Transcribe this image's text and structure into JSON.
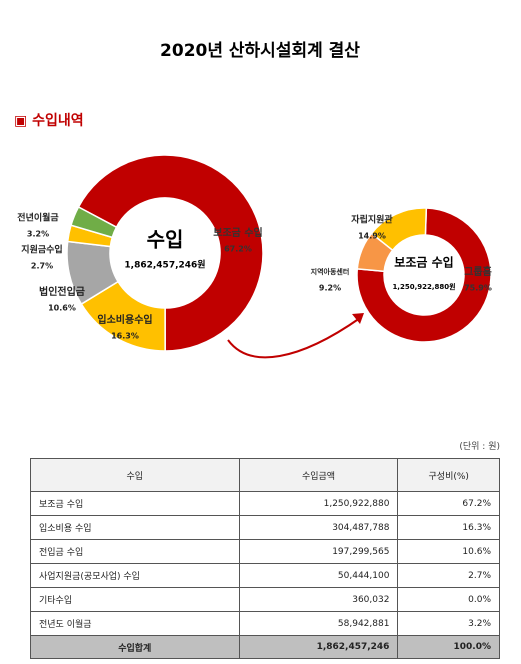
{
  "title": "2020년 산하시설회계 결산",
  "section": "▣ 수입내역",
  "chart_data": [
    {
      "type": "donut",
      "center_label": "수입",
      "center_value": "1,862,457,246원",
      "categories": [
        "보조금 수입",
        "입소비용수입",
        "법인전입금",
        "지원금수입",
        "전년이월금"
      ],
      "values": [
        67.2,
        16.3,
        10.6,
        2.7,
        3.2
      ],
      "value_labels": [
        "67.2%",
        "16.3%",
        "10.6%",
        "2.7%",
        "3.2%"
      ],
      "colors": [
        "#c00000",
        "#ffc000",
        "#a6a6a6",
        "#ffc000",
        "#70ad47"
      ]
    },
    {
      "type": "donut",
      "center_label": "보조금 수입",
      "center_value": "1,250,922,880원",
      "categories": [
        "그룹홈",
        "지역아동센터",
        "자립지원관"
      ],
      "values": [
        75.9,
        9.2,
        14.9
      ],
      "value_labels": [
        "75.9%",
        "9.2%",
        "14.9%"
      ],
      "colors": [
        "#c00000",
        "#f79646",
        "#ffc000"
      ]
    }
  ],
  "unit_note": "(단위 : 원)",
  "table": {
    "header": [
      "수입",
      "수입금액",
      "구성비(%)"
    ],
    "rows": [
      [
        "보조금 수입",
        "1,250,922,880",
        "67.2%"
      ],
      [
        "입소비용 수입",
        "304,487,788",
        "16.3%"
      ],
      [
        "전입금 수입",
        "197,299,565",
        "10.6%"
      ],
      [
        "사업지원금(공모사업) 수입",
        "50,444,100",
        "2.7%"
      ],
      [
        "기타수입",
        "360,032",
        "0.0%"
      ],
      [
        "전년도 이월금",
        "58,942,881",
        "3.2%"
      ]
    ],
    "total": [
      "수입합계",
      "1,862,457,246",
      "100.0%"
    ]
  }
}
